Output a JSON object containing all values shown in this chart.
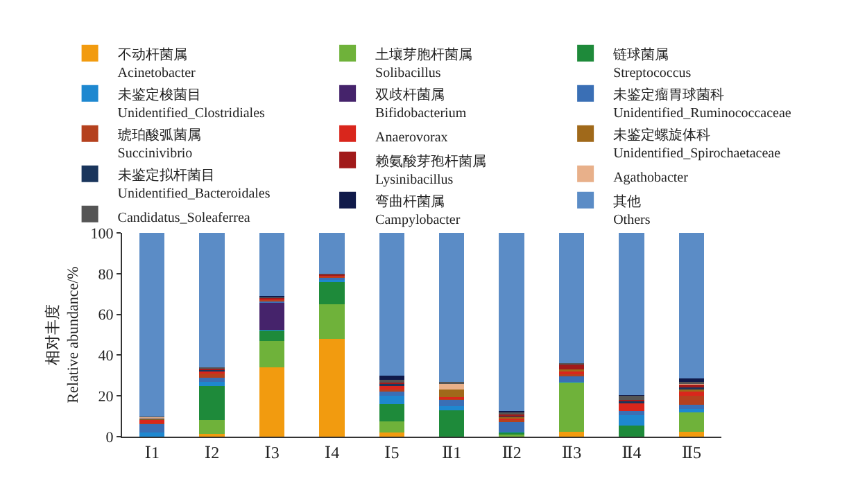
{
  "chart_data": {
    "type": "bar",
    "stacked": true,
    "ylabel": "相对丰度\nRelative abundance/%",
    "categories": [
      "Ⅰ1",
      "Ⅰ2",
      "Ⅰ3",
      "Ⅰ4",
      "Ⅰ5",
      "Ⅱ1",
      "Ⅱ2",
      "Ⅱ3",
      "Ⅱ4",
      "Ⅱ5"
    ],
    "ylim": [
      0,
      100
    ],
    "yticks": [
      0,
      20,
      40,
      60,
      80,
      100
    ],
    "grid": false,
    "legend": "top",
    "series": [
      {
        "name": "不动杆菌属\nAcinetobacter",
        "color": "#f29b0f",
        "values": [
          0,
          1.5,
          34,
          48,
          2,
          0,
          0,
          2.5,
          0,
          2.5
        ]
      },
      {
        "name": "土壤芽胞杆菌属\nSolibacillus",
        "color": "#6fb23a",
        "values": [
          0,
          6.5,
          13,
          17,
          5.5,
          0,
          1,
          24,
          0,
          9.5
        ]
      },
      {
        "name": "链球菌属\nStreptococcus",
        "color": "#1e8a3a",
        "values": [
          0,
          17,
          5,
          11,
          8.5,
          13,
          1,
          0,
          5.5,
          0
        ]
      },
      {
        "name": "未鉴定梭菌目\nUnidentified_Clostridiales",
        "color": "#1e88d0",
        "values": [
          2,
          2,
          0.5,
          1,
          4,
          2,
          0.5,
          0.5,
          5,
          1.5
        ]
      },
      {
        "name": "双歧杆菌属\nBifidobacterium",
        "color": "#45236b",
        "values": [
          0,
          0,
          13,
          0,
          0,
          0,
          0,
          0,
          0,
          0
        ]
      },
      {
        "name": "未鉴定瘤胃球菌科\nUnidentified_Ruminococcaceae",
        "color": "#3a6fb5",
        "values": [
          4,
          2,
          1,
          1,
          2,
          3,
          4.5,
          2.5,
          2,
          2
        ]
      },
      {
        "name": "琥珀酸弧菌属\nSuccinivibrio",
        "color": "#b5411e",
        "values": [
          0.5,
          2,
          0.5,
          0.5,
          1,
          0.5,
          1,
          1,
          0,
          4.5
        ]
      },
      {
        "name": "Anaerovorax",
        "color": "#d9261c",
        "values": [
          1.5,
          1,
          0.5,
          0.5,
          2,
          1,
          1,
          1.5,
          4,
          2
        ]
      },
      {
        "name": "未鉴定螺旋体科\nUnidentified_Spirochaetaceae",
        "color": "#a0691a",
        "values": [
          0.5,
          0,
          0,
          0,
          0,
          3.5,
          0.5,
          1,
          0,
          1
        ]
      },
      {
        "name": "未鉴定拟杆菌目\nUnidentified_Bacteroidales",
        "color": "#1a355c",
        "values": [
          0.5,
          0.5,
          0,
          0,
          1,
          0,
          0.5,
          0,
          1,
          1
        ]
      },
      {
        "name": "赖氨酸芽孢杆菌属\nLysinibacillus",
        "color": "#a11a1a",
        "values": [
          0,
          1,
          0.5,
          0.5,
          0.5,
          0,
          1,
          2.5,
          0.5,
          1.5
        ]
      },
      {
        "name": "Agathobacter",
        "color": "#e8b08a",
        "values": [
          0.5,
          0,
          0,
          0,
          0,
          3,
          0,
          0,
          0,
          0.5
        ]
      },
      {
        "name": "Candidatus_Soleaferrea",
        "color": "#555555",
        "values": [
          0.5,
          0.5,
          0.5,
          0.5,
          1.5,
          1,
          1,
          0.5,
          2,
          1
        ]
      },
      {
        "name": "弯曲杆菌属\nCampylobacter",
        "color": "#101a4a",
        "values": [
          0,
          0,
          0.5,
          0,
          2,
          0,
          0.5,
          0,
          0.5,
          1.5
        ]
      },
      {
        "name": "其他\nOthers",
        "color": "#5b8cc6",
        "values": [
          90,
          66,
          31,
          20,
          70,
          73,
          87.5,
          64,
          79.5,
          71.5
        ]
      }
    ]
  }
}
